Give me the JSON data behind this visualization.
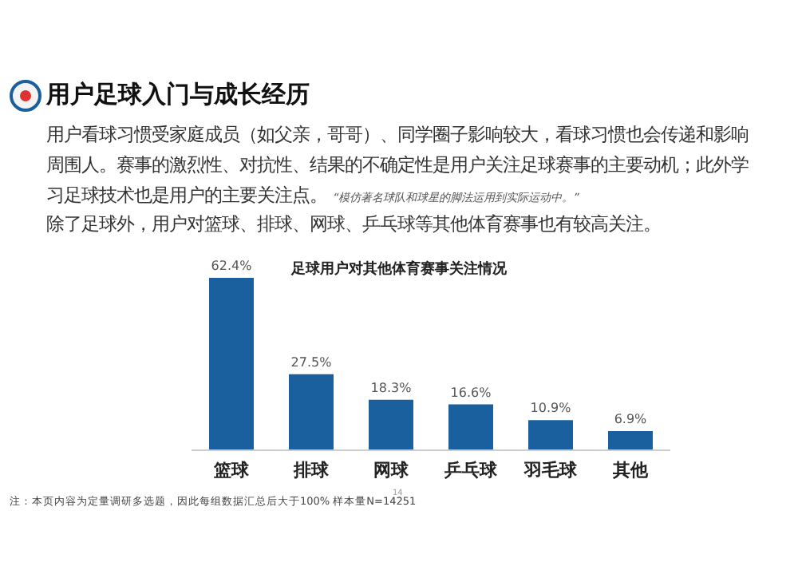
{
  "chart_data": {
    "type": "bar",
    "title": "用户足球入门与成长经历",
    "subtitle": "足球用户对其他体育赛事关注情况",
    "annotations": [
      "用户看球习惯受家庭成员（如父亲，哥哥）、同学圈子影响较大，看球习惯也会传递和影响周围人。赛事的激烈性、对抗性、结果的不确定性是用户关注足球赛事的主要动机；此外学习足球技术也是用户的主要关注点。",
      "“模仿著名球队和球星的脚法运用到实际运动中。”",
      "除了足球外，用户对篮球、排球、网球、乒乓球等其他体育赛事也有较高关注。",
      "注：本页内容为定量调研多选题，因此每组数据汇总后大于100%  样本量N=14251",
      "14"
    ],
    "categories": [
      "篮球",
      "排球",
      "网球",
      "乒乓球",
      "羽毛球",
      "其他"
    ],
    "values": [
      62.4,
      27.5,
      18.3,
      16.6,
      10.9,
      6.9
    ],
    "value_labels": [
      "62.4%",
      "27.5%",
      "18.3%",
      "16.6%",
      "10.9%",
      "6.9%"
    ],
    "color": "#1a5f9e"
  }
}
